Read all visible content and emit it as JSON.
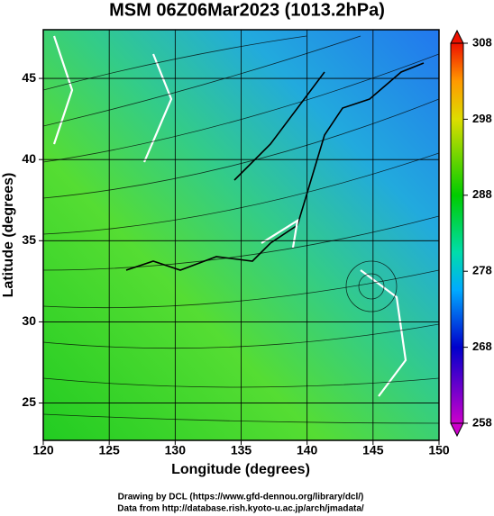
{
  "title": "MSM 06Z06Mar2023 (1013.2hPa)",
  "map": {
    "xlabel": "Longitude (degrees)",
    "ylabel": "Latitude  (degrees)",
    "xlim": [
      120,
      150
    ],
    "ylim": [
      22.7,
      48
    ],
    "xticks": [
      120,
      125,
      130,
      135,
      140,
      145,
      150
    ],
    "yticks": [
      25,
      30,
      35,
      40,
      45
    ]
  },
  "colorbar": {
    "lim": [
      258,
      308
    ],
    "ticks": [
      258,
      268,
      278,
      288,
      298,
      308
    ]
  },
  "credits": [
    "Drawing by DCL (https://www.gfd-dennou.org/library/dcl/)",
    "Data from http://database.rish.kyoto-u.ac.jp/arch/jmadata/"
  ]
}
